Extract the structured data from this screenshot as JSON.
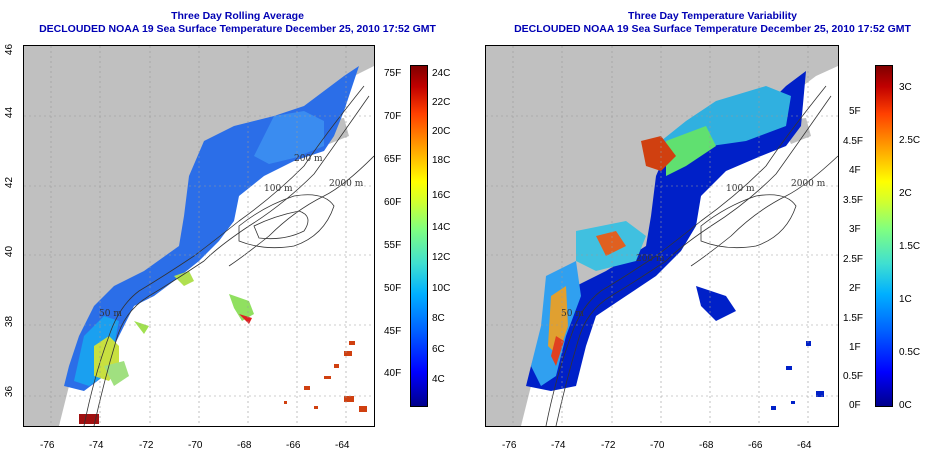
{
  "left_panel": {
    "title_line1": "Three Day Rolling Average",
    "title_line2": "DECLOUDED NOAA 19 Sea Surface Temperature December 25, 2010 17:52 GMT",
    "colorbar_left_labels": [
      "75F",
      "70F",
      "65F",
      "60F",
      "55F",
      "50F",
      "45F",
      "40F"
    ],
    "colorbar_right_labels": [
      "24C",
      "22C",
      "20C",
      "18C",
      "16C",
      "14C",
      "12C",
      "10C",
      "8C",
      "6C",
      "4C"
    ]
  },
  "right_panel": {
    "title_line1": "Three Day Temperature Variability",
    "title_line2": "DECLOUDED NOAA 19 Sea Surface Temperature December 25, 2010 17:52 GMT",
    "colorbar_left_labels": [
      "5F",
      "4.5F",
      "4F",
      "3.5F",
      "3F",
      "2.5F",
      "2F",
      "1.5F",
      "1F",
      "0.5F",
      "0F"
    ],
    "colorbar_right_labels": [
      "3C",
      "2.5C",
      "2C",
      "1.5C",
      "1C",
      "0.5C",
      "0C"
    ]
  },
  "axes": {
    "x_ticks": [
      "-76",
      "-74",
      "-72",
      "-70",
      "-68",
      "-66",
      "-64"
    ],
    "y_ticks": [
      "36",
      "38",
      "40",
      "42",
      "44",
      "46"
    ]
  },
  "contour_labels": [
    "200 m",
    "100 m",
    "2000 m",
    "50 m",
    "100 m",
    "2000 m",
    "200 m",
    "50 m"
  ],
  "colors": {
    "title": "#0000b4",
    "land": "#c0c0c0",
    "ocean_nodata": "#ffffff"
  }
}
